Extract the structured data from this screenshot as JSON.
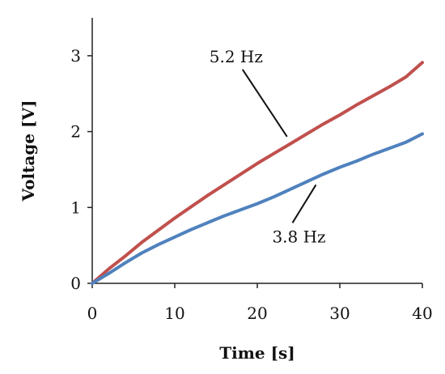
{
  "chart_data": {
    "type": "line",
    "title": "",
    "xlabel": "Time [s]",
    "ylabel": "Voltage [V]",
    "xlim": [
      0,
      40
    ],
    "ylim": [
      0,
      3.5
    ],
    "xticks": [
      0,
      10,
      20,
      30,
      40
    ],
    "yticks": [
      0,
      1,
      2,
      3
    ],
    "xtick_labels": [
      "0",
      "10",
      "20",
      "30",
      "40"
    ],
    "ytick_labels": [
      "0",
      "1",
      "2",
      "3"
    ],
    "grid": false,
    "legend": "none",
    "series": [
      {
        "color": "#c0504d",
        "x": [
          0,
          2,
          4,
          6,
          8,
          10,
          12,
          14,
          16,
          18,
          20,
          22,
          24,
          26,
          28,
          30,
          32,
          34,
          36,
          38,
          40
        ],
        "values": [
          0.0,
          0.19,
          0.36,
          0.54,
          0.7,
          0.86,
          1.01,
          1.16,
          1.3,
          1.44,
          1.58,
          1.71,
          1.84,
          1.97,
          2.1,
          2.22,
          2.35,
          2.47,
          2.59,
          2.72,
          2.91
        ]
      },
      {
        "color": "#4f81bd",
        "x": [
          0,
          2,
          4,
          6,
          8,
          10,
          12,
          14,
          16,
          18,
          20,
          22,
          24,
          26,
          28,
          30,
          32,
          34,
          36,
          38,
          40
        ],
        "values": [
          0.0,
          0.13,
          0.27,
          0.4,
          0.51,
          0.61,
          0.71,
          0.8,
          0.89,
          0.97,
          1.05,
          1.14,
          1.24,
          1.34,
          1.44,
          1.53,
          1.61,
          1.7,
          1.78,
          1.86,
          1.97
        ]
      }
    ],
    "annotations": [
      {
        "text": "5.2 Hz",
        "series_index": 0,
        "anchor_x": 23.8
      },
      {
        "text": "3.8 Hz",
        "series_index": 1,
        "anchor_x": 27.3
      }
    ]
  }
}
